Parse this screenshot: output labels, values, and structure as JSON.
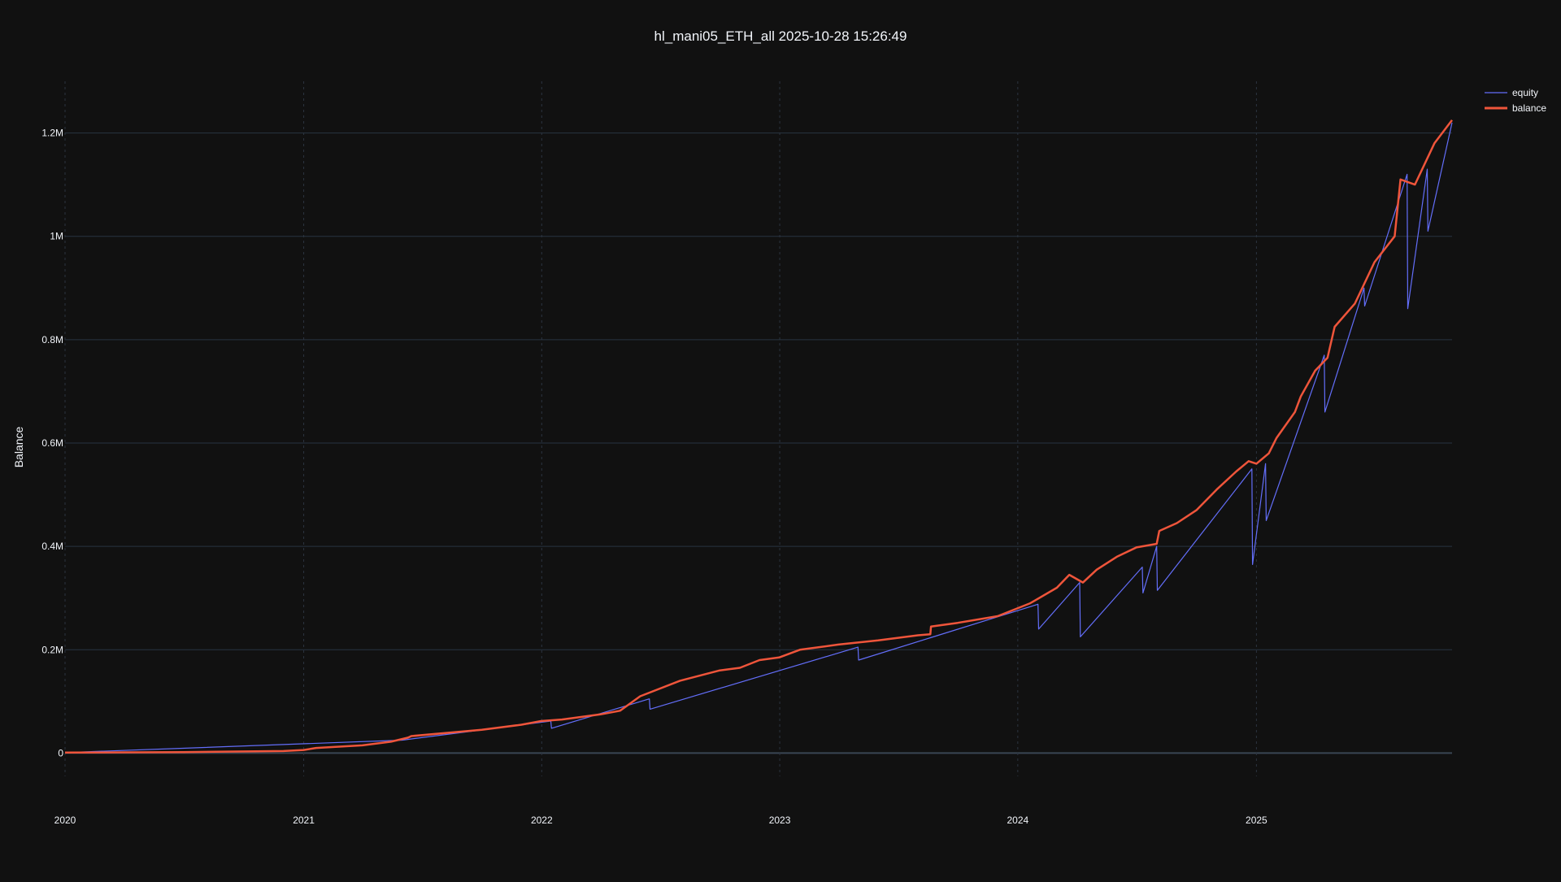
{
  "chart_data": {
    "type": "line",
    "title": "hl_mani05_ETH_all 2025-10-28 15:26:49",
    "xlabel": "",
    "ylabel": "Balance",
    "x_ticks": [
      "2020",
      "2021",
      "2022",
      "2023",
      "2024",
      "2025"
    ],
    "y_ticks": [
      {
        "value": 0,
        "label": "0"
      },
      {
        "value": 200000,
        "label": "0.2M"
      },
      {
        "value": 400000,
        "label": "0.4M"
      },
      {
        "value": 600000,
        "label": "0.6M"
      },
      {
        "value": 800000,
        "label": "0.8M"
      },
      {
        "value": 1000000,
        "label": "1M"
      },
      {
        "value": 1200000,
        "label": "1.2M"
      }
    ],
    "xlim": [
      "2020-01-01",
      "2025-10-28"
    ],
    "ylim": [
      -100000,
      1300000
    ],
    "grid": true,
    "legend_position": "top-right",
    "colors": {
      "equity": "#636efa",
      "balance": "#ef553b",
      "background": "#111111",
      "grid": "#283442"
    },
    "series": [
      {
        "name": "balance",
        "x": [
          "2020-01-01",
          "2020-07-01",
          "2020-12-01",
          "2021-01-01",
          "2021-01-20",
          "2021-04-01",
          "2021-05-15",
          "2021-06-10",
          "2021-06-15",
          "2021-10-01",
          "2021-12-01",
          "2021-12-31",
          "2022-02-01",
          "2022-04-01",
          "2022-05-01",
          "2022-06-01",
          "2022-08-01",
          "2022-10-01",
          "2022-11-01",
          "2022-12-01",
          "2022-12-31",
          "2023-02-01",
          "2023-04-01",
          "2023-06-01",
          "2023-08-01",
          "2023-08-20",
          "2023-08-21",
          "2023-10-01",
          "2023-12-01",
          "2024-01-20",
          "2024-03-01",
          "2024-03-20",
          "2024-04-10",
          "2024-05-01",
          "2024-06-01",
          "2024-07-01",
          "2024-08-01",
          "2024-08-05",
          "2024-09-01",
          "2024-10-01",
          "2024-11-01",
          "2024-12-01",
          "2024-12-20",
          "2025-01-01",
          "2025-01-20",
          "2025-02-01",
          "2025-03-01",
          "2025-03-10",
          "2025-04-01",
          "2025-04-20",
          "2025-05-01",
          "2025-06-01",
          "2025-07-01",
          "2025-08-01",
          "2025-08-10",
          "2025-09-01",
          "2025-10-01",
          "2025-10-28"
        ],
        "values": [
          1000,
          2000,
          4000,
          6000,
          10000,
          15000,
          22000,
          30000,
          33000,
          45000,
          55000,
          62000,
          65000,
          75000,
          82000,
          110000,
          140000,
          160000,
          165000,
          180000,
          185000,
          200000,
          210000,
          218000,
          228000,
          230000,
          245000,
          252000,
          265000,
          290000,
          320000,
          345000,
          330000,
          355000,
          380000,
          398000,
          405000,
          430000,
          445000,
          470000,
          510000,
          545000,
          565000,
          560000,
          580000,
          610000,
          660000,
          690000,
          740000,
          765000,
          825000,
          870000,
          950000,
          1000000,
          1110000,
          1100000,
          1180000,
          1225000
        ]
      },
      {
        "name": "equity",
        "x": [
          "2020-01-01",
          "2021-06-01",
          "2022-01-15",
          "2022-01-16",
          "2022-06-15",
          "2022-06-16",
          "2023-05-01",
          "2023-05-02",
          "2024-02-01",
          "2024-02-02",
          "2024-04-05",
          "2024-04-06",
          "2024-07-10",
          "2024-07-11",
          "2024-08-01",
          "2024-08-02",
          "2024-12-25",
          "2024-12-26",
          "2025-01-15",
          "2025-01-16",
          "2025-04-15",
          "2025-04-16",
          "2025-06-15",
          "2025-06-16",
          "2025-08-20",
          "2025-08-21",
          "2025-09-20",
          "2025-09-21",
          "2025-10-28"
        ],
        "values": [
          1000,
          25000,
          62000,
          48000,
          105000,
          85000,
          205000,
          180000,
          288000,
          240000,
          330000,
          225000,
          360000,
          310000,
          400000,
          315000,
          550000,
          365000,
          560000,
          450000,
          770000,
          660000,
          900000,
          865000,
          1120000,
          860000,
          1130000,
          1010000,
          1220000
        ]
      }
    ]
  }
}
